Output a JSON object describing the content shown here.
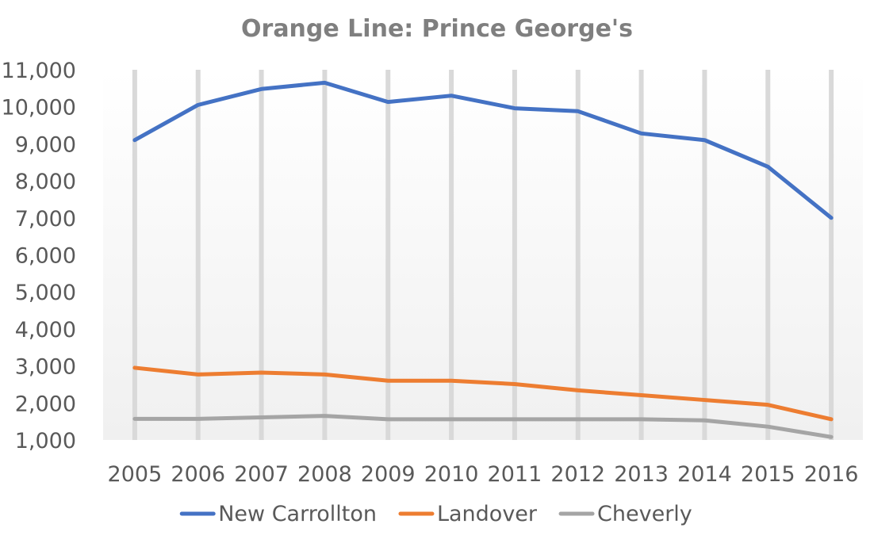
{
  "chart_data": {
    "type": "line",
    "title": "Orange Line: Prince George's",
    "xlabel": "",
    "ylabel": "",
    "categories": [
      "2005",
      "2006",
      "2007",
      "2008",
      "2009",
      "2010",
      "2011",
      "2012",
      "2013",
      "2014",
      "2015",
      "2016"
    ],
    "yticks": [
      "1,000",
      "2,000",
      "3,000",
      "4,000",
      "5,000",
      "6,000",
      "7,000",
      "8,000",
      "9,000",
      "10,000",
      "11,000"
    ],
    "ylim": [
      1000,
      11000
    ],
    "grid": "vertical",
    "legend_position": "bottom",
    "series": [
      {
        "name": "New Carrollton",
        "color": "#4472c4",
        "values": [
          9100,
          10050,
          10480,
          10650,
          10130,
          10300,
          9960,
          9880,
          9280,
          9100,
          8380,
          7000
        ]
      },
      {
        "name": "Landover",
        "color": "#ed7d31",
        "values": [
          2950,
          2770,
          2820,
          2770,
          2600,
          2600,
          2510,
          2340,
          2210,
          2080,
          1950,
          1560
        ]
      },
      {
        "name": "Cheverly",
        "color": "#a5a5a5",
        "values": [
          1570,
          1570,
          1610,
          1650,
          1560,
          1560,
          1560,
          1560,
          1560,
          1530,
          1360,
          1080
        ]
      }
    ]
  }
}
